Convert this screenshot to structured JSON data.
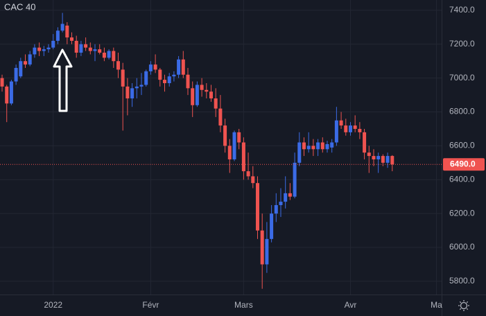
{
  "chart_data": {
    "type": "candlestick",
    "title": "CAC 40",
    "up_color": "#3b6be6",
    "down_color": "#ef5350",
    "open": [
      7000,
      6950,
      6850,
      6980,
      7010,
      7100,
      7080,
      7140,
      7180,
      7160,
      7170,
      7180,
      7220,
      7280,
      7310,
      7240,
      7220,
      7150,
      7200,
      7180,
      7160,
      7170,
      7150,
      7120,
      7160,
      7100,
      7050,
      6950,
      6880,
      6940,
      6950,
      6960,
      7040,
      7080,
      7050,
      6990,
      6970,
      7010,
      7020,
      7110,
      7020,
      6940,
      6840,
      6960,
      6930,
      6920,
      6880,
      6820,
      6720,
      6600,
      6520,
      6680,
      6620,
      6450,
      6420,
      6380,
      6100,
      5900,
      6050,
      6200,
      6250,
      6270,
      6320,
      6300,
      6500,
      6620,
      6580,
      6600,
      6580,
      6620,
      6580,
      6590,
      6620,
      6750,
      6720,
      6680,
      6720,
      6700,
      6680,
      6560,
      6540,
      6520,
      6540,
      6500,
      6540
    ],
    "high": [
      7020,
      6960,
      6990,
      7080,
      7120,
      7140,
      7160,
      7200,
      7210,
      7190,
      7200,
      7260,
      7300,
      7385,
      7330,
      7270,
      7250,
      7220,
      7240,
      7210,
      7200,
      7200,
      7180,
      7170,
      7180,
      7150,
      7090,
      7000,
      6970,
      7000,
      7030,
      7050,
      7100,
      7140,
      7060,
      7020,
      7030,
      7040,
      7130,
      7160,
      7060,
      6980,
      6980,
      7000,
      6970,
      6960,
      6940,
      6900,
      6760,
      6640,
      6690,
      6700,
      6650,
      6560,
      6480,
      6420,
      6200,
      6150,
      6250,
      6320,
      6350,
      6420,
      6380,
      6560,
      6680,
      6650,
      6680,
      6640,
      6640,
      6650,
      6630,
      6640,
      6830,
      6800,
      6760,
      6740,
      6780,
      6740,
      6700,
      6600,
      6580,
      6560,
      6550,
      6560,
      6545
    ],
    "low": [
      6920,
      6740,
      6840,
      6960,
      7000,
      7060,
      7070,
      7120,
      7130,
      7130,
      7150,
      7170,
      7200,
      7270,
      7200,
      7200,
      7120,
      7130,
      7160,
      7140,
      7100,
      7140,
      7100,
      7110,
      7060,
      7000,
      6690,
      6780,
      6830,
      6880,
      6900,
      6950,
      7020,
      7030,
      6950,
      6920,
      6950,
      6980,
      7000,
      7000,
      6900,
      6770,
      6830,
      6890,
      6880,
      6860,
      6770,
      6680,
      6560,
      6440,
      6510,
      6580,
      6400,
      6400,
      6350,
      6050,
      5756,
      5850,
      6030,
      6150,
      6180,
      6230,
      6280,
      6290,
      6480,
      6540,
      6560,
      6540,
      6540,
      6560,
      6560,
      6560,
      6600,
      6700,
      6660,
      6660,
      6680,
      6640,
      6520,
      6440,
      6480,
      6440,
      6480,
      6470,
      6450
    ],
    "close": [
      6950,
      6850,
      6980,
      7060,
      7100,
      7080,
      7140,
      7180,
      7160,
      7170,
      7180,
      7220,
      7280,
      7320,
      7240,
      7220,
      7150,
      7200,
      7180,
      7160,
      7170,
      7150,
      7120,
      7160,
      7100,
      7050,
      6950,
      6880,
      6940,
      6950,
      6960,
      7040,
      7080,
      7050,
      6990,
      6970,
      7010,
      7020,
      7110,
      7020,
      6940,
      6840,
      6960,
      6930,
      6920,
      6880,
      6820,
      6720,
      6600,
      6520,
      6680,
      6620,
      6450,
      6420,
      6380,
      6100,
      5900,
      6050,
      6200,
      6250,
      6270,
      6320,
      6300,
      6500,
      6620,
      6580,
      6600,
      6580,
      6620,
      6580,
      6610,
      6620,
      6750,
      6720,
      6680,
      6720,
      6700,
      6680,
      6560,
      6540,
      6520,
      6540,
      6500,
      6540,
      6490
    ],
    "xlim": [
      -0.45,
      94.63
    ],
    "xticks": [
      {
        "value": 11,
        "label": "2022"
      },
      {
        "value": 32,
        "label": "Févr"
      },
      {
        "value": 52,
        "label": "Mars"
      },
      {
        "value": 75,
        "label": "Avr"
      },
      {
        "value": 93.5,
        "label": "Ma"
      }
    ],
    "ylim": [
      5722,
      7461
    ],
    "yticks": [
      {
        "value": 5800,
        "label": "5800.0"
      },
      {
        "value": 6000,
        "label": "6000.0"
      },
      {
        "value": 6200,
        "label": "6200.0"
      },
      {
        "value": 6400,
        "label": "6400.0"
      },
      {
        "value": 6600,
        "label": "6600.0"
      },
      {
        "value": 6800,
        "label": "6800.0"
      },
      {
        "value": 7000,
        "label": "7000.0"
      },
      {
        "value": 7200,
        "label": "7200.0"
      },
      {
        "value": 7400,
        "label": "7400.0"
      }
    ],
    "grid": true,
    "last_price": {
      "value": 6490,
      "label": "6490.0"
    }
  }
}
